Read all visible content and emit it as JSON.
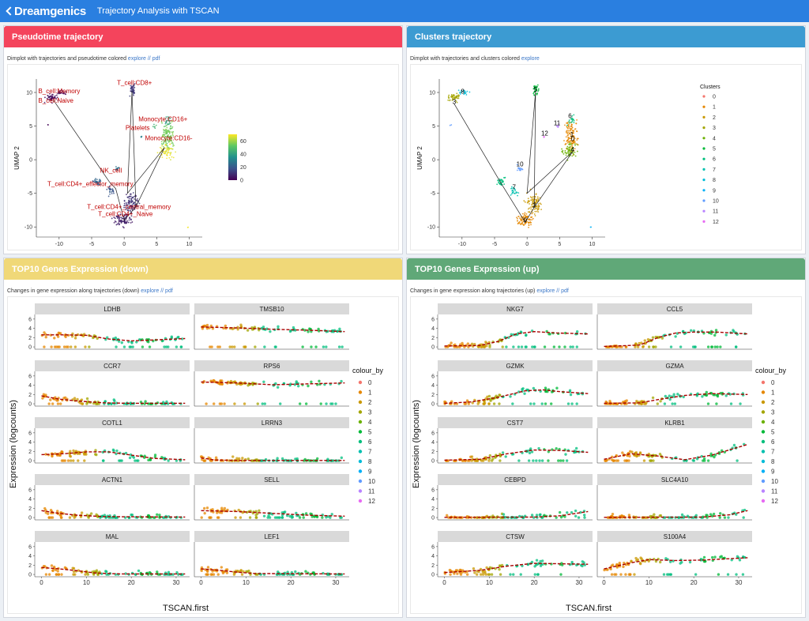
{
  "app": {
    "brand": "Dreamgenics",
    "title": "Trajectory Analysis with TSCAN"
  },
  "colors": {
    "topbar": "#2a7fe0",
    "red": "#f4445c",
    "blue": "#3c9bd2",
    "yellow": "#f0d878",
    "green": "#60a878"
  },
  "panels": {
    "pseudotime": {
      "title": "Pseudotime trajectory",
      "subtitle": "Dimplot with trajectories and pseudotime colored",
      "links": [
        "explore",
        "//",
        "pdf"
      ]
    },
    "clusters": {
      "title": "Clusters trajectory",
      "subtitle": "Dimplot with trajectories and clusters colored",
      "links": [
        "explore"
      ]
    },
    "down": {
      "title": "TOP10 Genes Expression (down)",
      "subtitle": "Changes in gene expression along trajectories (down)",
      "links": [
        "explore",
        "//",
        "pdf"
      ]
    },
    "up": {
      "title": "TOP10 Genes Expression (up)",
      "subtitle": "Changes in gene expression along trajectories (up)",
      "links": [
        "explore",
        "//",
        "pdf"
      ]
    }
  },
  "chart_data": [
    {
      "type": "scatter",
      "title": "Pseudotime trajectory UMAP",
      "xlabel": "UMAP 1",
      "ylabel": "UMAP 2",
      "xlim": [
        -13.5,
        12
      ],
      "ylim": [
        -11.5,
        12
      ],
      "xticks": [
        -10,
        -5,
        0,
        5,
        10
      ],
      "yticks": [
        -10,
        -5,
        0,
        5,
        10
      ],
      "colorbar": {
        "ticks": [
          0,
          20,
          40,
          60
        ],
        "range": [
          0,
          70
        ]
      },
      "labels": [
        {
          "text": "B_cell:Memory",
          "x": -13.2,
          "y": 9.9
        },
        {
          "text": "B_cell:Naive",
          "x": -13.2,
          "y": 8.5
        },
        {
          "text": "T_cell:CD8+",
          "x": -1.1,
          "y": 11.1
        },
        {
          "text": "Monocyte:CD16+",
          "x": 2.2,
          "y": 5.7
        },
        {
          "text": "Platelets",
          "x": 0.2,
          "y": 4.4
        },
        {
          "text": "Monocyte:CD16-",
          "x": 3.2,
          "y": 2.9
        },
        {
          "text": "NK_cell",
          "x": -3.7,
          "y": -1.9
        },
        {
          "text": "T_cell:CD4+_effector_memory",
          "x": -11.8,
          "y": -3.9
        },
        {
          "text": "T_cell:CD4+_central_memory",
          "x": -5.7,
          "y": -7.3
        },
        {
          "text": "T_cell:CD4+_Naive",
          "x": -4.0,
          "y": -8.4
        }
      ],
      "trajectory": [
        [
          -10.9,
          8.9
        ],
        [
          -2.2,
          -3.4
        ],
        [
          -1.3,
          -4.3
        ],
        [
          0,
          -9
        ],
        [
          1.8,
          -7
        ],
        [
          1.2,
          10.2
        ],
        [
          0.5,
          -5
        ],
        [
          6.2,
          1.8
        ],
        [
          1.8,
          -7
        ]
      ]
    },
    {
      "type": "scatter",
      "title": "Clusters trajectory UMAP",
      "xlabel": "UMAP 1",
      "ylabel": "UMAP 2",
      "xlim": [
        -13.5,
        12
      ],
      "ylim": [
        -11.5,
        12
      ],
      "xticks": [
        -10,
        -5,
        0,
        5,
        10
      ],
      "yticks": [
        -10,
        -5,
        0,
        5,
        10
      ],
      "legend_title": "Clusters",
      "legend": [
        "0",
        "1",
        "2",
        "3",
        "4",
        "5",
        "6",
        "7",
        "8",
        "9",
        "10",
        "11",
        "12"
      ],
      "cluster_labels": [
        {
          "text": "0",
          "x": 7.0,
          "y": 2.8
        },
        {
          "text": "1",
          "x": 6.9,
          "y": 3.4
        },
        {
          "text": "2",
          "x": 1.1,
          "y": -7.1
        },
        {
          "text": "3",
          "x": -11.2,
          "y": 8.3
        },
        {
          "text": "4",
          "x": 7.0,
          "y": 1.2
        },
        {
          "text": "5",
          "x": 1.3,
          "y": 10.1
        },
        {
          "text": "6",
          "x": 6.6,
          "y": 6.2
        },
        {
          "text": "7",
          "x": -2.0,
          "y": -4.4
        },
        {
          "text": "8",
          "x": -9.9,
          "y": 9.8
        },
        {
          "text": "9",
          "x": -0.3,
          "y": -9.3
        },
        {
          "text": "10",
          "x": -1.1,
          "y": -1.0
        },
        {
          "text": "11",
          "x": 4.6,
          "y": 5.1
        },
        {
          "text": "12",
          "x": 2.7,
          "y": 3.6
        }
      ],
      "trajectory": [
        [
          -11.2,
          8.3
        ],
        [
          -4.0,
          -3.5
        ],
        [
          -0.3,
          -9.3
        ],
        [
          1.1,
          -7.1
        ],
        [
          1.3,
          10.1
        ],
        [
          0,
          -5
        ],
        [
          7.0,
          1.2
        ],
        [
          1.1,
          -7.1
        ]
      ]
    },
    {
      "type": "scatter",
      "title": "TOP10 Genes Expression (down)",
      "xlabel": "TSCAN.first",
      "ylabel": "Expression (logcounts)",
      "xlim": [
        -1.5,
        33
      ],
      "ylim": [
        -0.5,
        7
      ],
      "xticks": [
        0,
        10,
        20,
        30
      ],
      "yticks": [
        0,
        2,
        4,
        6
      ],
      "legend_title": "colour_by",
      "legend": [
        "0",
        "1",
        "2",
        "3",
        "4",
        "5",
        "6",
        "7",
        "8",
        "9",
        "10",
        "11",
        "12"
      ],
      "genes": [
        {
          "name": "LDHB",
          "curve": [
            [
              0,
              2.6
            ],
            [
              5,
              2.6
            ],
            [
              10,
              2.5
            ],
            [
              15,
              1.7
            ],
            [
              20,
              1.3
            ],
            [
              25,
              1.5
            ],
            [
              32,
              1.8
            ]
          ]
        },
        {
          "name": "TMSB10",
          "curve": [
            [
              0,
              4.3
            ],
            [
              8,
              4.1
            ],
            [
              16,
              3.8
            ],
            [
              24,
              3.6
            ],
            [
              32,
              3.3
            ]
          ]
        },
        {
          "name": "CCR7",
          "curve": [
            [
              0,
              1.7
            ],
            [
              4,
              1.0
            ],
            [
              8,
              0.6
            ],
            [
              14,
              0.2
            ],
            [
              20,
              0.1
            ],
            [
              32,
              0.1
            ]
          ]
        },
        {
          "name": "RPS6",
          "curve": [
            [
              0,
              4.7
            ],
            [
              8,
              4.5
            ],
            [
              16,
              4.1
            ],
            [
              24,
              4.3
            ],
            [
              32,
              4.5
            ]
          ]
        },
        {
          "name": "COTL1",
          "curve": [
            [
              0,
              1.3
            ],
            [
              5,
              1.5
            ],
            [
              10,
              1.9
            ],
            [
              15,
              1.9
            ],
            [
              20,
              1.2
            ],
            [
              25,
              0.5
            ],
            [
              32,
              0.2
            ]
          ]
        },
        {
          "name": "LRRN3",
          "curve": [
            [
              0,
              0.6
            ],
            [
              3,
              0.15
            ],
            [
              8,
              0.05
            ],
            [
              32,
              0.05
            ]
          ]
        },
        {
          "name": "ACTN1",
          "curve": [
            [
              0,
              1.5
            ],
            [
              4,
              0.9
            ],
            [
              8,
              0.5
            ],
            [
              14,
              0.2
            ],
            [
              32,
              0.1
            ]
          ]
        },
        {
          "name": "SELL",
          "curve": [
            [
              0,
              1.5
            ],
            [
              8,
              1.3
            ],
            [
              16,
              0.9
            ],
            [
              24,
              0.5
            ],
            [
              32,
              0.3
            ]
          ]
        },
        {
          "name": "MAL",
          "curve": [
            [
              0,
              1.5
            ],
            [
              4,
              1.2
            ],
            [
              8,
              0.8
            ],
            [
              12,
              0.3
            ],
            [
              18,
              0.1
            ],
            [
              32,
              0.1
            ]
          ]
        },
        {
          "name": "LEF1",
          "curve": [
            [
              0,
              1.2
            ],
            [
              4,
              0.9
            ],
            [
              8,
              0.5
            ],
            [
              12,
              0.2
            ],
            [
              32,
              0.1
            ]
          ]
        }
      ]
    },
    {
      "type": "scatter",
      "title": "TOP10 Genes Expression (up)",
      "xlabel": "TSCAN.first",
      "ylabel": "Expression (logcounts)",
      "xlim": [
        -1.5,
        33
      ],
      "ylim": [
        -0.5,
        7
      ],
      "xticks": [
        0,
        10,
        20,
        30
      ],
      "yticks": [
        0,
        2,
        4,
        6
      ],
      "legend_title": "colour_by",
      "legend": [
        "0",
        "1",
        "2",
        "3",
        "4",
        "5",
        "6",
        "7",
        "8",
        "9",
        "10",
        "11",
        "12"
      ],
      "genes": [
        {
          "name": "NKG7",
          "curve": [
            [
              0,
              0.2
            ],
            [
              8,
              0.3
            ],
            [
              12,
              1.2
            ],
            [
              16,
              2.8
            ],
            [
              20,
              3.3
            ],
            [
              25,
              3.0
            ],
            [
              32,
              2.8
            ]
          ]
        },
        {
          "name": "CCL5",
          "curve": [
            [
              0,
              0.1
            ],
            [
              8,
              0.4
            ],
            [
              12,
              2.0
            ],
            [
              16,
              3.0
            ],
            [
              20,
              3.2
            ],
            [
              25,
              3.2
            ],
            [
              32,
              2.8
            ]
          ]
        },
        {
          "name": "GZMK",
          "curve": [
            [
              0,
              0.1
            ],
            [
              6,
              0.4
            ],
            [
              12,
              1.4
            ],
            [
              18,
              2.8
            ],
            [
              22,
              3.0
            ],
            [
              26,
              2.6
            ],
            [
              32,
              2.2
            ]
          ]
        },
        {
          "name": "GZMA",
          "curve": [
            [
              0,
              0.1
            ],
            [
              8,
              0.2
            ],
            [
              12,
              0.9
            ],
            [
              18,
              1.8
            ],
            [
              24,
              2.2
            ],
            [
              32,
              2.0
            ]
          ]
        },
        {
          "name": "CST7",
          "curve": [
            [
              0,
              0.1
            ],
            [
              8,
              0.3
            ],
            [
              14,
              1.5
            ],
            [
              20,
              2.3
            ],
            [
              26,
              2.2
            ],
            [
              32,
              1.8
            ]
          ]
        },
        {
          "name": "KLRB1",
          "curve": [
            [
              0,
              0.3
            ],
            [
              6,
              1.5
            ],
            [
              12,
              1.0
            ],
            [
              18,
              0.2
            ],
            [
              24,
              1.2
            ],
            [
              32,
              3.5
            ]
          ]
        },
        {
          "name": "CEBPD",
          "curve": [
            [
              0,
              0.05
            ],
            [
              20,
              0.1
            ],
            [
              26,
              0.4
            ],
            [
              32,
              1.3
            ]
          ]
        },
        {
          "name": "SLC4A10",
          "curve": [
            [
              0,
              0.05
            ],
            [
              22,
              0.1
            ],
            [
              28,
              0.6
            ],
            [
              32,
              1.5
            ]
          ]
        },
        {
          "name": "CTSW",
          "curve": [
            [
              0,
              0.4
            ],
            [
              8,
              0.9
            ],
            [
              14,
              1.8
            ],
            [
              20,
              2.4
            ],
            [
              26,
              2.3
            ],
            [
              32,
              2.2
            ]
          ]
        },
        {
          "name": "S100A4",
          "curve": [
            [
              0,
              1.2
            ],
            [
              6,
              2.5
            ],
            [
              10,
              3.2
            ],
            [
              16,
              3.0
            ],
            [
              22,
              3.1
            ],
            [
              32,
              3.6
            ]
          ]
        }
      ]
    }
  ]
}
